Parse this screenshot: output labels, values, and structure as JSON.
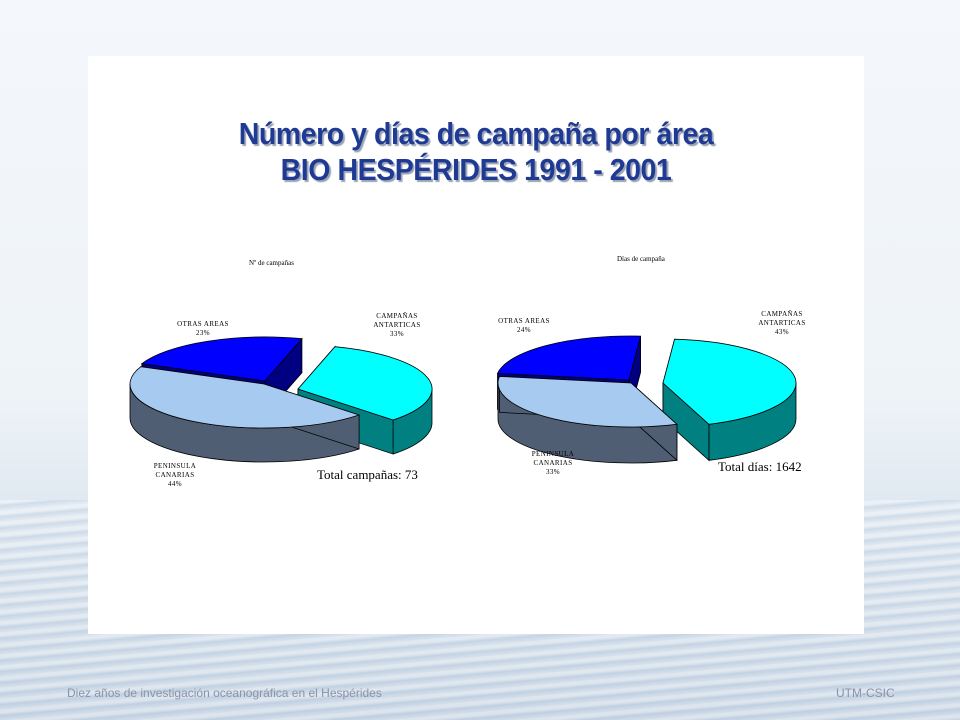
{
  "slide": {
    "title_line1": "Número y días de campaña por área",
    "title_line2": "BIO HESPÉRIDES 1991 - 2001"
  },
  "chart_data": [
    {
      "type": "pie",
      "title": "Nº de campañas",
      "total_label": "Total campañas: 73",
      "slices": [
        {
          "label": [
            "CAMPAÑAS",
            "ANTARTICAS"
          ],
          "pct_label": "33%",
          "value": 33,
          "color": "#00ffff",
          "side": "#008080"
        },
        {
          "label": [
            "PENINSULA",
            "CANARIAS"
          ],
          "pct_label": "44%",
          "value": 44,
          "color": "#a6caf0",
          "side": "#4f5e73"
        },
        {
          "label": [
            "OTRAS AREAS"
          ],
          "pct_label": "23%",
          "value": 23,
          "color": "#0000ff",
          "side": "#000080"
        }
      ]
    },
    {
      "type": "pie",
      "title": "Días de campaña",
      "total_label": "Total días: 1642",
      "slices": [
        {
          "label": [
            "CAMPAÑAS",
            "ANTARTICAS"
          ],
          "pct_label": "43%",
          "value": 43,
          "color": "#00ffff",
          "side": "#008080"
        },
        {
          "label": [
            "PENINSULA",
            "CANARIAS"
          ],
          "pct_label": "33%",
          "value": 33,
          "color": "#a6caf0",
          "side": "#4f5e73"
        },
        {
          "label": [
            "OTRAS AREAS"
          ],
          "pct_label": "24%",
          "value": 24,
          "color": "#0000ff",
          "side": "#000080"
        }
      ]
    }
  ],
  "footer": {
    "left": "Diez años de investigación oceanográfica en el Hespérides",
    "right": "UTM-CSIC"
  }
}
